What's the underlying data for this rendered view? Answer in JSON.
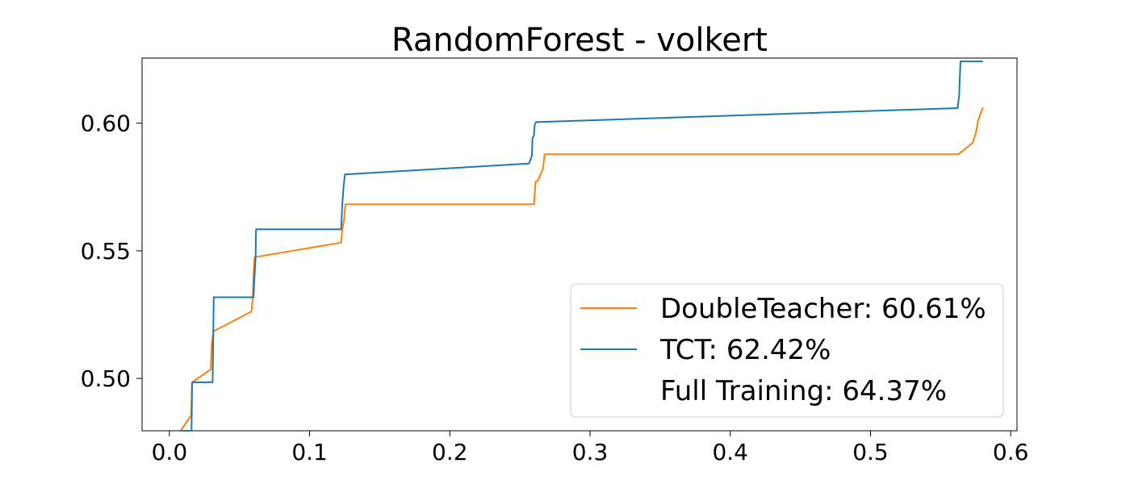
{
  "chart_data": {
    "type": "line",
    "title": "RandomForest - volkert",
    "xlabel": "",
    "ylabel": "",
    "xlim": [
      -0.0195,
      0.6045
    ],
    "ylim": [
      0.4795,
      0.6255
    ],
    "x_ticks": [
      0.0,
      0.1,
      0.2,
      0.3,
      0.4,
      0.5,
      0.6
    ],
    "x_tick_labels": [
      "0.0",
      "0.1",
      "0.2",
      "0.3",
      "0.4",
      "0.5",
      "0.6"
    ],
    "y_ticks": [
      0.5,
      0.55,
      0.6
    ],
    "y_tick_labels": [
      "0.50",
      "0.55",
      "0.60"
    ],
    "grid": false,
    "legend_position": "lower-right",
    "series": [
      {
        "name": "DoubleTeacher: 60.61%",
        "color": "#ff7f0e",
        "x": [
          0.008,
          0.0155,
          0.0162,
          0.0295,
          0.0302,
          0.0315,
          0.0585,
          0.0595,
          0.06,
          0.0608,
          0.1225,
          0.1232,
          0.1245,
          0.1255,
          0.26,
          0.2612,
          0.2625,
          0.2665,
          0.2675,
          0.5625,
          0.5728,
          0.5752,
          0.5768,
          0.5802
        ],
        "y": [
          0.4795,
          0.4855,
          0.4985,
          0.5035,
          0.5135,
          0.5185,
          0.5262,
          0.5312,
          0.5412,
          0.5475,
          0.5532,
          0.5582,
          0.5622,
          0.5682,
          0.5682,
          0.5772,
          0.5772,
          0.5822,
          0.5878,
          0.5878,
          0.5922,
          0.5962,
          0.6012,
          0.6062
        ]
      },
      {
        "name": "TCT: 62.42%",
        "color": "#1f77b4",
        "x": [
          0.008,
          0.0158,
          0.0162,
          0.0308,
          0.0312,
          0.0316,
          0.06,
          0.0605,
          0.0615,
          0.0618,
          0.1225,
          0.1232,
          0.1242,
          0.1252,
          0.2565,
          0.2585,
          0.259,
          0.26,
          0.2605,
          0.2615,
          0.5622,
          0.5632,
          0.5642,
          0.5802
        ],
        "y": [
          0.4795,
          0.4795,
          0.4985,
          0.4985,
          0.5145,
          0.5318,
          0.5318,
          0.5378,
          0.5478,
          0.5584,
          0.5584,
          0.5674,
          0.5749,
          0.5799,
          0.5842,
          0.5872,
          0.5942,
          0.5952,
          0.5992,
          0.6004,
          0.6059,
          0.6109,
          0.6242,
          0.6242
        ]
      },
      {
        "name": "Full Training: 64.37%",
        "color": "#000000",
        "x": [],
        "y": []
      }
    ]
  }
}
